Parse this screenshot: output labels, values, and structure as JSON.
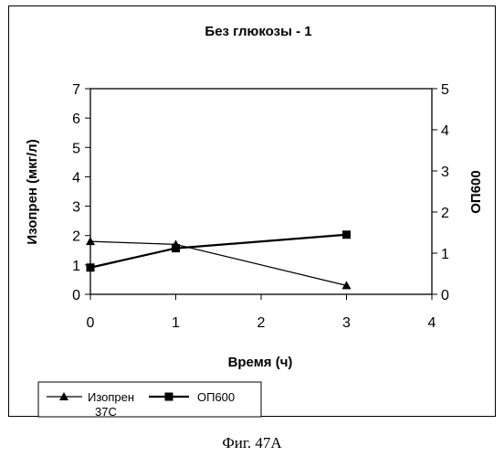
{
  "caption": "Фиг. 47A",
  "chart_data": {
    "type": "line",
    "title": "Без глюкозы - 1",
    "xlabel": "Время (ч)",
    "ylabel_left": "Изопрен (мкг/л)",
    "ylabel_right": "ОП600",
    "xlim": [
      0,
      4
    ],
    "ylim_left": [
      0,
      7
    ],
    "ylim_right": [
      0,
      5
    ],
    "x_ticks": [
      "0",
      "1",
      "2",
      "3",
      "4"
    ],
    "y_ticks_left": [
      "0",
      "1",
      "2",
      "3",
      "4",
      "5",
      "6",
      "7"
    ],
    "y_ticks_right": [
      "0",
      "1",
      "2",
      "3",
      "4",
      "5"
    ],
    "grid": false,
    "legend_position": "bottom-left",
    "series": [
      {
        "name": "Изопрен 37С",
        "legend_lines": [
          "Изопрен",
          "37С"
        ],
        "axis": "left",
        "marker": "triangle",
        "color": "#000000",
        "x": [
          0,
          1,
          3
        ],
        "y": [
          1.8,
          1.7,
          0.3
        ]
      },
      {
        "name": "ОП600",
        "legend_lines": [
          "ОП600"
        ],
        "axis": "right",
        "marker": "square",
        "color": "#000000",
        "x": [
          0,
          1,
          3
        ],
        "y": [
          0.65,
          1.12,
          1.45
        ]
      }
    ]
  }
}
